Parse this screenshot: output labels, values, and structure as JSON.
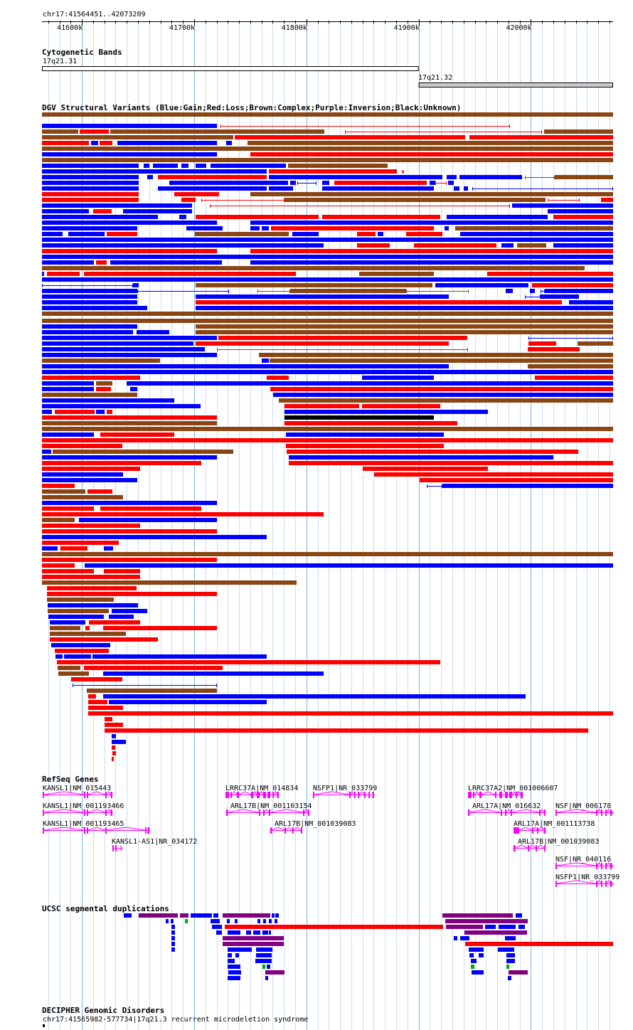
{
  "region": {
    "label": "chr17:41564451..42073209",
    "start": 41564451,
    "end": 42073209
  },
  "ruler": {
    "ticks": [
      {
        "pos": 41600000,
        "label": "41600k"
      },
      {
        "pos": 41700000,
        "label": "41700k"
      },
      {
        "pos": 41800000,
        "label": "41800k"
      },
      {
        "pos": 41900000,
        "label": "41900k"
      },
      {
        "pos": 42000000,
        "label": "42000k"
      }
    ]
  },
  "cytobands": {
    "title": "Cytogenetic Bands",
    "bands": [
      {
        "name": "17q21.31",
        "start": 41564451,
        "end": 41900000,
        "stain": "#ffffff"
      },
      {
        "name": "17q21.32",
        "start": 41900000,
        "end": 42073209,
        "stain": "#cccccc"
      }
    ]
  },
  "dgv": {
    "title": "DGV Structural Variants (Blue:Gain;Red:Loss;Brown:Complex;Purple:Inversion;Black:Unknown)",
    "colors": {
      "gain": "#0000ff",
      "loss": "#ff0000",
      "complex": "#8b4513",
      "inversion": "#800080",
      "unknown": "#000000"
    }
  },
  "refseq": {
    "title": "RefSeq Genes",
    "color": "#ff00ff",
    "genes": [
      {
        "label": "KANSL1|NM_015443"
      },
      {
        "label": "KANSL1|NM_001193466"
      },
      {
        "label": "KANSL1|NM_001193465"
      },
      {
        "label": "KANSL1-AS1|NR_034172"
      },
      {
        "label": "LRRC37A|NM_014834"
      },
      {
        "label": "ARL17B|NM_001103154"
      },
      {
        "label": "ARL17B|NM_001039083"
      },
      {
        "label": "NSFP1|NR_033799"
      },
      {
        "label": "LRRC37A2|NM_001006607"
      },
      {
        "label": "ARL17A|NM_016632"
      },
      {
        "label": "NSF|NM_006178"
      },
      {
        "label": "ARL17A|NM_001113738"
      },
      {
        "label": "ARL17B|NM_001039083"
      },
      {
        "label": "NSF|NR_040116"
      },
      {
        "label": "NSFP1|NR_033799"
      }
    ]
  },
  "segdups": {
    "title": "UCSC segmental duplications",
    "colors": {
      "blue": "#0000ff",
      "purple": "#800080",
      "red": "#ff0000",
      "green": "#00aa00"
    }
  },
  "decipher": {
    "title": "DECIPHER Genomic Disorders",
    "feature_label": "chr17:41565982-577734|17q21.3 recurrent microdeletion syndrome"
  }
}
